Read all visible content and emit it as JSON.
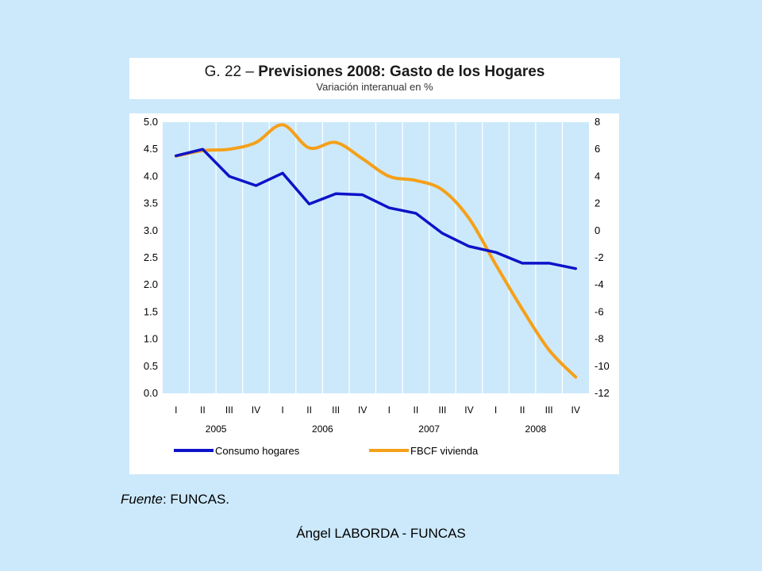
{
  "title": {
    "prefix": "G. 22 –",
    "bold": "Previsiones 2008: Gasto de los Hogares",
    "subtitle": "Variación interanual en %"
  },
  "source": {
    "label": "Fuente",
    "sep": ":",
    "value": "FUNCAS."
  },
  "footer": "Ángel LABORDA - FUNCAS",
  "colors": {
    "background": "#cce9fb",
    "plot_bg": "#cce9fb",
    "consumo": "#0d13c8",
    "fbcf": "#f5a01a"
  },
  "chart_data": {
    "type": "line",
    "categories": [
      "I",
      "II",
      "III",
      "IV",
      "I",
      "II",
      "III",
      "IV",
      "I",
      "II",
      "III",
      "IV",
      "I",
      "II",
      "III",
      "IV"
    ],
    "years": [
      "2005",
      "2006",
      "2007",
      "2008"
    ],
    "y_left": {
      "lim": [
        0,
        5
      ],
      "ticks": [
        "0.0",
        "0.5",
        "1.0",
        "1.5",
        "2.0",
        "2.5",
        "3.0",
        "3.5",
        "4.0",
        "4.5",
        "5.0"
      ]
    },
    "y_right": {
      "lim": [
        -12,
        8
      ],
      "ticks": [
        "-12",
        "-10",
        "-8",
        "-6",
        "-4",
        "-2",
        "0",
        "2",
        "4",
        "6",
        "8"
      ]
    },
    "grid": "vertical",
    "legend_position": "bottom",
    "series": [
      {
        "name": "Consumo hogares",
        "axis": "left",
        "values": [
          4.38,
          4.5,
          4.0,
          3.83,
          4.06,
          3.49,
          3.68,
          3.66,
          3.42,
          3.32,
          2.95,
          2.71,
          2.6,
          2.4,
          2.4,
          2.3
        ]
      },
      {
        "name": "FBCF vivienda",
        "axis": "right",
        "values": [
          5.5,
          5.9,
          6.0,
          6.5,
          7.8,
          6.1,
          6.5,
          5.3,
          4.0,
          3.7,
          3.0,
          0.9,
          -2.5,
          -5.8,
          -8.8,
          -10.8
        ]
      }
    ]
  }
}
